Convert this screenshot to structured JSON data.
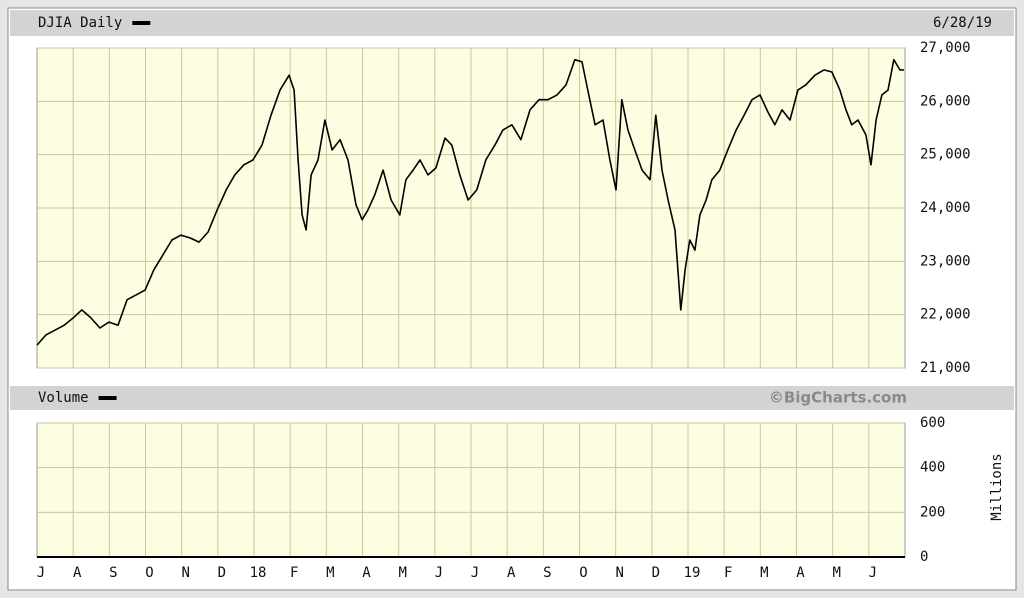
{
  "chart_data": [
    {
      "type": "line",
      "title": "DJIA Daily",
      "date": "6/28/19",
      "color": "#000000",
      "grid": true,
      "x": [
        0.0,
        0.25,
        0.5,
        0.75,
        1.0,
        1.24,
        1.49,
        1.74,
        1.99,
        2.24,
        2.49,
        2.74,
        2.99,
        3.23,
        3.48,
        3.73,
        3.98,
        4.23,
        4.48,
        4.73,
        4.98,
        5.23,
        5.47,
        5.72,
        5.97,
        6.22,
        6.47,
        6.72,
        6.97,
        7.11,
        7.22,
        7.33,
        7.44,
        7.58,
        7.77,
        7.96,
        8.16,
        8.38,
        8.6,
        8.82,
        8.99,
        9.15,
        9.34,
        9.57,
        9.79,
        10.03,
        10.2,
        10.4,
        10.59,
        10.81,
        11.03,
        11.28,
        11.47,
        11.69,
        11.92,
        12.16,
        12.41,
        12.66,
        12.88,
        13.13,
        13.38,
        13.63,
        13.88,
        14.13,
        14.38,
        14.63,
        14.87,
        15.07,
        15.23,
        15.43,
        15.65,
        15.84,
        16.01,
        16.17,
        16.34,
        16.53,
        16.73,
        16.95,
        17.11,
        17.28,
        17.45,
        17.64,
        17.8,
        17.92,
        18.05,
        18.19,
        18.33,
        18.5,
        18.66,
        18.88,
        19.1,
        19.33,
        19.55,
        19.77,
        19.99,
        20.21,
        20.4,
        20.6,
        20.82,
        21.04,
        21.26,
        21.51,
        21.76,
        21.98,
        22.2,
        22.37,
        22.53,
        22.7,
        22.92,
        23.06,
        23.2,
        23.36,
        23.53,
        23.69,
        23.86,
        23.97
      ],
      "values": [
        21430,
        21620,
        21710,
        21800,
        21940,
        22090,
        21940,
        21750,
        21860,
        21800,
        22280,
        22370,
        22460,
        22840,
        23120,
        23400,
        23490,
        23440,
        23360,
        23550,
        23960,
        24340,
        24620,
        24810,
        24900,
        25180,
        25740,
        26210,
        26490,
        26210,
        24900,
        23870,
        23590,
        24620,
        24900,
        25650,
        25090,
        25280,
        24900,
        24060,
        23780,
        23960,
        24250,
        24710,
        24150,
        23870,
        24530,
        24710,
        24900,
        24620,
        24750,
        25310,
        25180,
        24620,
        24150,
        24340,
        24900,
        25180,
        25460,
        25560,
        25280,
        25840,
        26030,
        26030,
        26120,
        26310,
        26780,
        26740,
        26210,
        25560,
        25650,
        24900,
        24340,
        26030,
        25460,
        25090,
        24710,
        24530,
        25740,
        24710,
        24150,
        23590,
        22090,
        22840,
        23400,
        23210,
        23870,
        24150,
        24530,
        24710,
        25090,
        25460,
        25740,
        26030,
        26120,
        25800,
        25560,
        25840,
        25650,
        26210,
        26310,
        26490,
        26590,
        26550,
        26210,
        25840,
        25560,
        25650,
        25370,
        24810,
        25650,
        26120,
        26210,
        26780,
        26590,
        26590
      ],
      "xlim": [
        0,
        24
      ],
      "xticks": [
        {
          "value": 0,
          "label": "J"
        },
        {
          "value": 1,
          "label": "A"
        },
        {
          "value": 2,
          "label": "S"
        },
        {
          "value": 3,
          "label": "O"
        },
        {
          "value": 4,
          "label": "N"
        },
        {
          "value": 5,
          "label": "D"
        },
        {
          "value": 6,
          "label": "18"
        },
        {
          "value": 7,
          "label": "F"
        },
        {
          "value": 8,
          "label": "M"
        },
        {
          "value": 9,
          "label": "A"
        },
        {
          "value": 10,
          "label": "M"
        },
        {
          "value": 11,
          "label": "J"
        },
        {
          "value": 12,
          "label": "J"
        },
        {
          "value": 13,
          "label": "A"
        },
        {
          "value": 14,
          "label": "S"
        },
        {
          "value": 15,
          "label": "O"
        },
        {
          "value": 16,
          "label": "N"
        },
        {
          "value": 17,
          "label": "D"
        },
        {
          "value": 18,
          "label": "19"
        },
        {
          "value": 19,
          "label": "F"
        },
        {
          "value": 20,
          "label": "M"
        },
        {
          "value": 21,
          "label": "A"
        },
        {
          "value": 22,
          "label": "M"
        },
        {
          "value": 23,
          "label": "J"
        }
      ],
      "ylim": [
        21000,
        27000
      ],
      "yticks": [
        {
          "value": 21000,
          "label": "21,000"
        },
        {
          "value": 22000,
          "label": "22,000"
        },
        {
          "value": 23000,
          "label": "23,000"
        },
        {
          "value": 24000,
          "label": "24,000"
        },
        {
          "value": 25000,
          "label": "25,000"
        },
        {
          "value": 26000,
          "label": "26,000"
        },
        {
          "value": 27000,
          "label": "27,000"
        }
      ]
    },
    {
      "type": "bar",
      "title": "Volume",
      "source": "©BigCharts.com",
      "y_label": "Millions",
      "grid": true,
      "ylim": [
        0,
        600
      ],
      "yticks": [
        0,
        200,
        400,
        600
      ]
    }
  ]
}
